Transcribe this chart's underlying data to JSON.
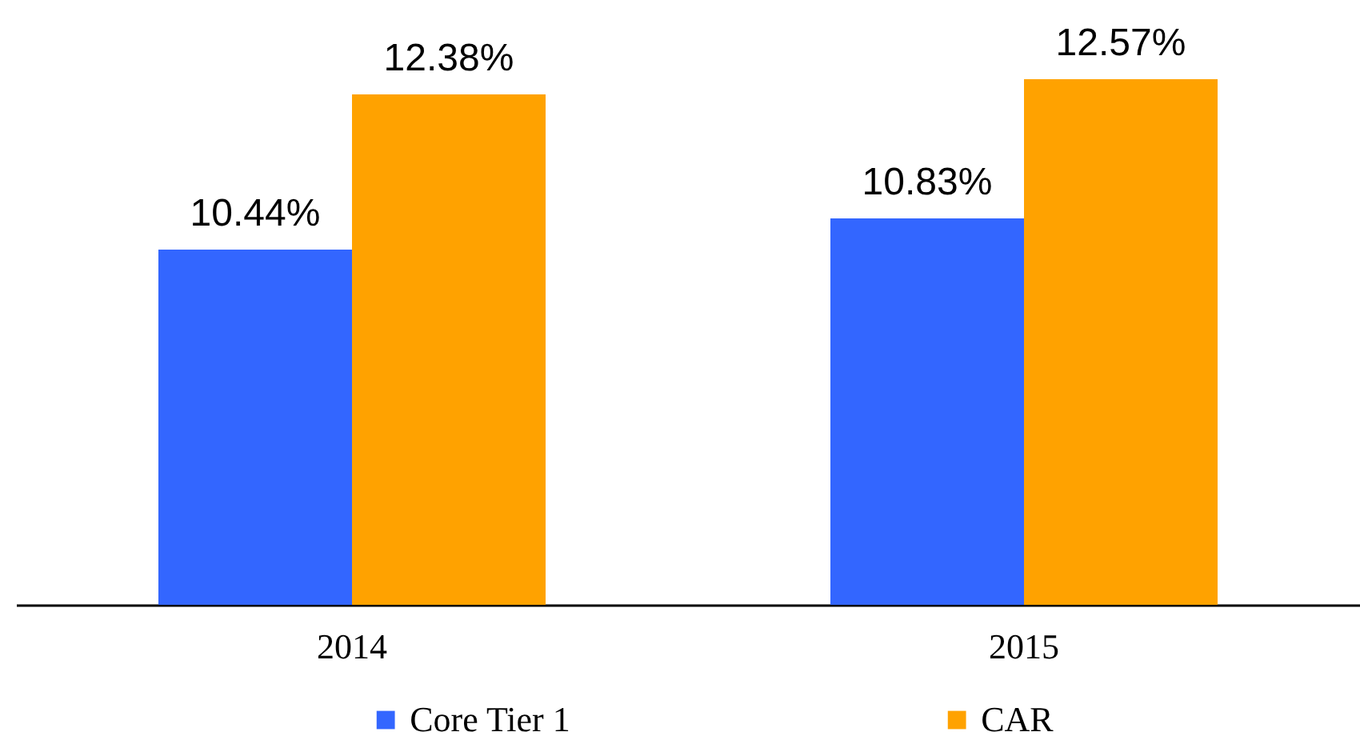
{
  "chart_data": {
    "type": "bar",
    "categories": [
      "2014",
      "2015"
    ],
    "series": [
      {
        "name": "Core Tier 1",
        "color": "#3366ff",
        "values": [
          10.44,
          10.83
        ],
        "value_labels": [
          "10.44%",
          "10.83%"
        ]
      },
      {
        "name": "CAR",
        "color": "#ffa200",
        "values": [
          12.38,
          12.57
        ],
        "value_labels": [
          "12.38%",
          "12.57%"
        ]
      }
    ],
    "ylim": [
      6,
      13.5
    ],
    "tick_labels": "x",
    "legend": "bottom"
  }
}
